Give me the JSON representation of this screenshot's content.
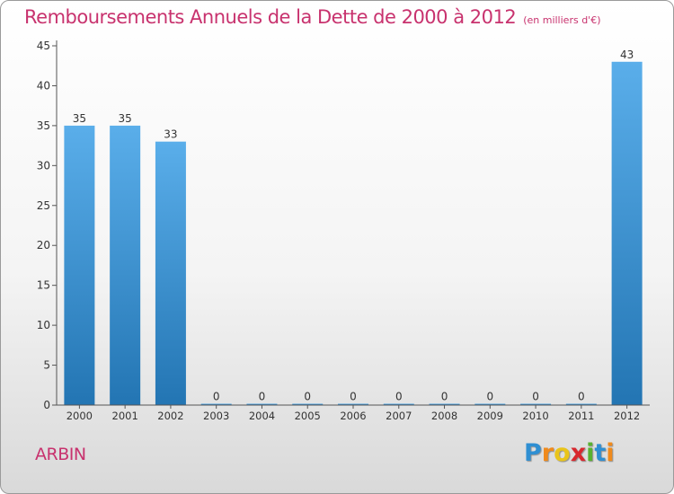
{
  "chart_data": {
    "type": "bar",
    "title": "Remboursements Annuels de la Dette de 2000 à 2012",
    "unit_note": "(en milliers d'€)",
    "categories": [
      "2000",
      "2001",
      "2002",
      "2003",
      "2004",
      "2005",
      "2006",
      "2007",
      "2008",
      "2009",
      "2010",
      "2011",
      "2012"
    ],
    "values": [
      35,
      35,
      33,
      0,
      0,
      0,
      0,
      0,
      0,
      0,
      0,
      0,
      43
    ],
    "ylim": [
      0,
      45
    ],
    "yticks": [
      0,
      5,
      10,
      15,
      20,
      25,
      30,
      35,
      40,
      45
    ],
    "grid": false,
    "bar_color_top": "#5aaeea",
    "bar_color_bottom": "#2375b3"
  },
  "commune": "ARBIN",
  "logo": {
    "letters": [
      "P",
      "r",
      "o",
      "x",
      "i",
      "t",
      "i"
    ]
  }
}
